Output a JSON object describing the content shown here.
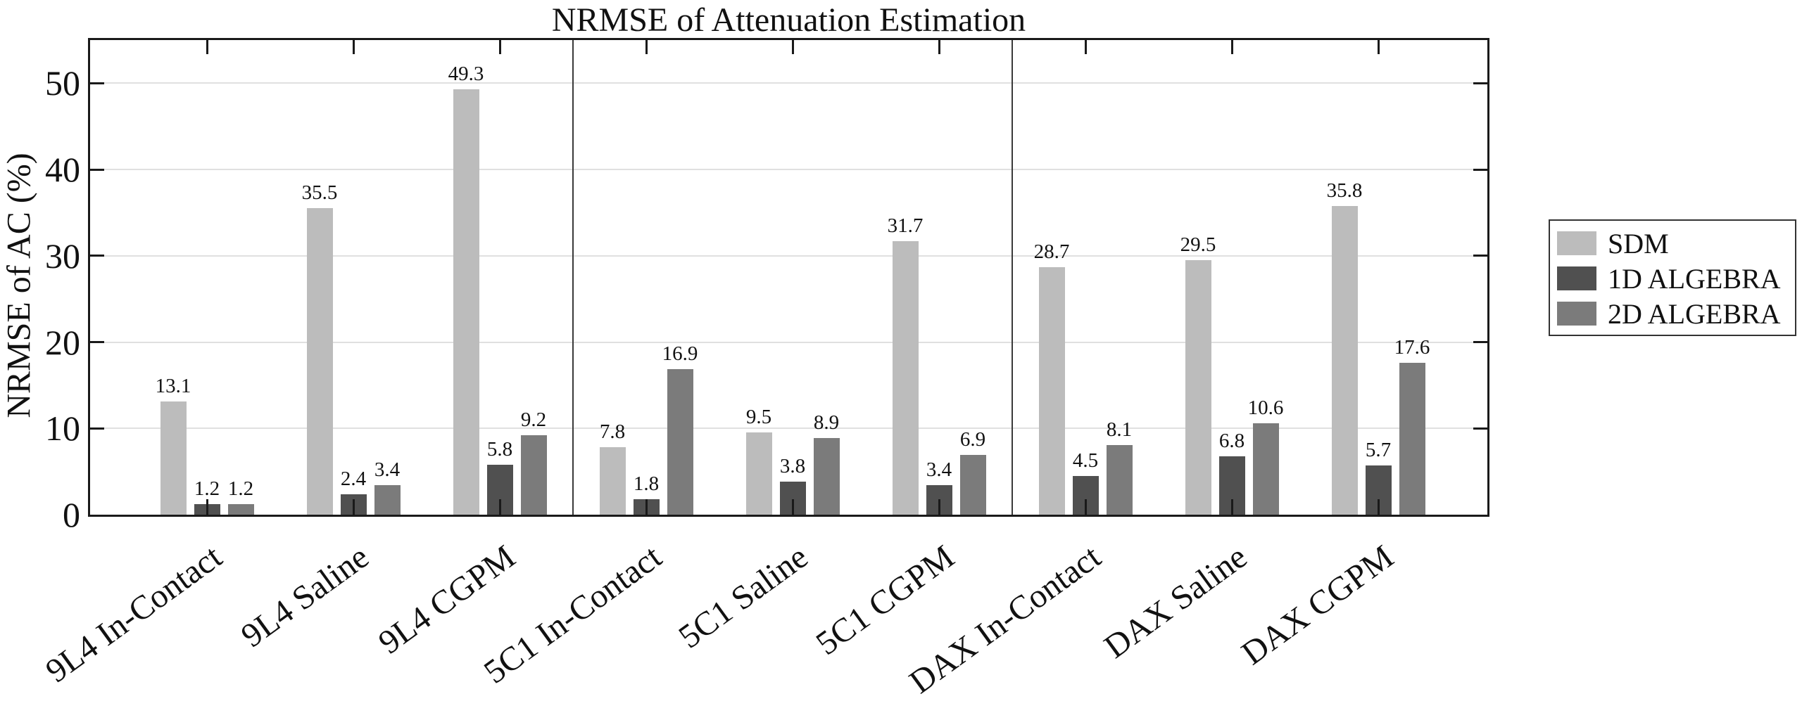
{
  "figure": {
    "background": "#ffffff",
    "axis_color": "#1a1a1a",
    "gridline_color": "#e0e0e0",
    "separator_color": "#3a3a3a"
  },
  "chart_data": {
    "type": "bar",
    "title": "NRMSE of Attenuation Estimation",
    "xlabel": "",
    "ylabel": "NRMSE of AC (%)",
    "ylim": [
      0,
      55
    ],
    "yticks": [
      0,
      10,
      20,
      30,
      40,
      50
    ],
    "grid": "horizontal-only",
    "legend_position": "outside-right",
    "bar_value_labels": true,
    "value_label_decimals": 1,
    "categories": [
      "9L4 In-Contact",
      "9L4 Saline",
      "9L4 CGPM",
      "5C1 In-Contact",
      "5C1 Saline",
      "5C1 CGPM",
      "DAX In-Contact",
      "DAX Saline",
      "DAX CGPM"
    ],
    "group_separators_after_category": [
      "9L4 CGPM",
      "5C1 CGPM"
    ],
    "series": [
      {
        "name": "SDM",
        "color": "#bcbcbc",
        "values": [
          13.1,
          35.5,
          49.3,
          7.8,
          9.5,
          31.7,
          28.7,
          29.5,
          35.8
        ]
      },
      {
        "name": "1D ALGEBRA",
        "color": "#505050",
        "values": [
          1.2,
          2.4,
          5.8,
          1.8,
          3.8,
          3.4,
          4.5,
          6.8,
          5.7
        ]
      },
      {
        "name": "2D ALGEBRA",
        "color": "#7b7b7b",
        "values": [
          1.2,
          3.4,
          9.2,
          16.9,
          8.9,
          6.9,
          8.1,
          10.6,
          17.6
        ]
      }
    ]
  }
}
